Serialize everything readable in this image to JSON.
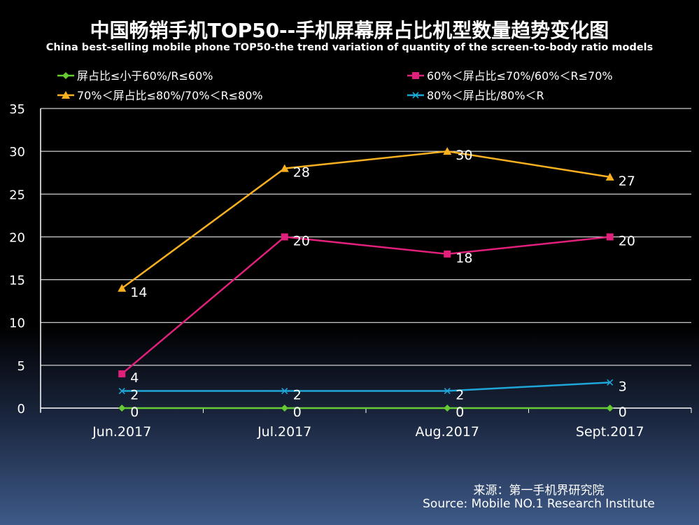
{
  "title": "中国畅销手机TOP50--手机屏幕屏占比机型数量趋势变化图",
  "subtitle": "China best-selling mobile phone TOP50-the trend variation of quantity of the screen-to-body ratio models",
  "source_cn": "来源：第一手机界研究院",
  "source_en": "Source: Mobile NO.1 Research Institute",
  "chart_data": {
    "type": "line",
    "categories": [
      "Jun.2017",
      "Jul.2017",
      "Aug.2017",
      "Sept.2017"
    ],
    "ylim": [
      0,
      35
    ],
    "yticks": [
      0,
      5,
      10,
      15,
      20,
      25,
      30,
      35
    ],
    "grid": true,
    "legend_position": "top",
    "series": [
      {
        "name": "屏占比≤小于60%/R≤60%",
        "values": [
          0,
          0,
          0,
          0
        ],
        "color": "#66cc33",
        "marker": "diamond"
      },
      {
        "name": "60%＜屏占比≤70%/60%＜R≤70%",
        "values": [
          4,
          20,
          18,
          20
        ],
        "color": "#e0207a",
        "marker": "square"
      },
      {
        "name": "70%＜屏占比≤80%/70%＜R≤80%",
        "values": [
          14,
          28,
          30,
          27
        ],
        "color": "#f8b020",
        "marker": "triangle"
      },
      {
        "name": "80%＜屏占比/80%＜R",
        "values": [
          2,
          2,
          2,
          3
        ],
        "color": "#1fa6d8",
        "marker": "x"
      }
    ]
  }
}
